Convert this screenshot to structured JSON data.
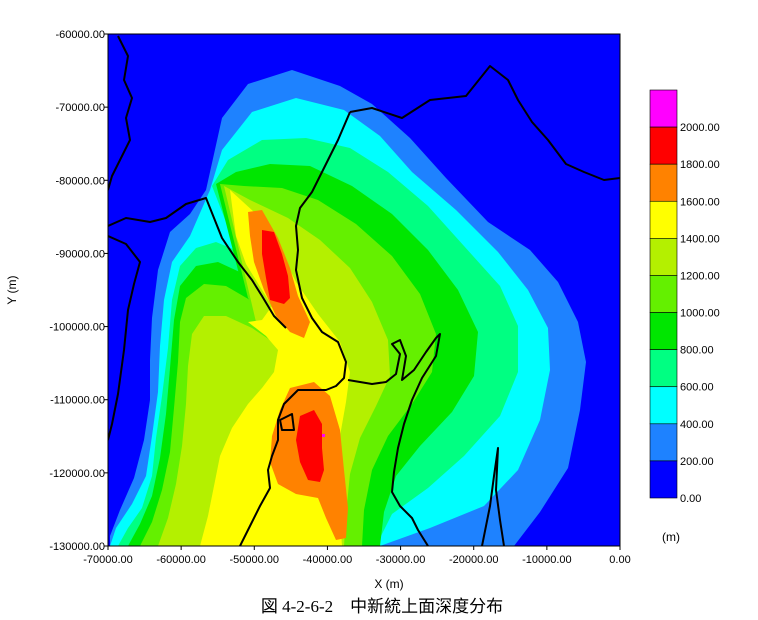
{
  "chart_data": {
    "type": "heatmap",
    "title": "",
    "caption": "図 4-2-6-2　中新統上面深度分布",
    "xlabel": "X (m)",
    "ylabel": "Y (m)",
    "xlim": [
      -70000,
      0
    ],
    "ylim": [
      -130000,
      -60000
    ],
    "x_ticks": [
      "-70000.00",
      "-60000.00",
      "-50000.00",
      "-40000.00",
      "-30000.00",
      "-20000.00",
      "-10000.00",
      "0.00"
    ],
    "y_ticks": [
      "-60000.00",
      "-70000.00",
      "-80000.00",
      "-90000.00",
      "-100000.00",
      "-110000.00",
      "-120000.00",
      "-130000.00"
    ],
    "legend_placement": "right",
    "legend_unit": "(m)",
    "legend_labels": [
      "2000.00",
      "1800.00",
      "1600.00",
      "1400.00",
      "1200.00",
      "1000.00",
      "800.00",
      "600.00",
      "400.00",
      "200.00",
      "0.00"
    ],
    "levels": [
      {
        "min": 0,
        "max": 200,
        "color": "#0000ff"
      },
      {
        "min": 200,
        "max": 400,
        "color": "#1e82ff"
      },
      {
        "min": 400,
        "max": 600,
        "color": "#00ffff"
      },
      {
        "min": 600,
        "max": 800,
        "color": "#00ff82"
      },
      {
        "min": 800,
        "max": 1000,
        "color": "#00e600"
      },
      {
        "min": 1000,
        "max": 1200,
        "color": "#64f000"
      },
      {
        "min": 1200,
        "max": 1400,
        "color": "#b4f000"
      },
      {
        "min": 1400,
        "max": 1600,
        "color": "#ffff00"
      },
      {
        "min": 1600,
        "max": 1800,
        "color": "#ff8200"
      },
      {
        "min": 1800,
        "max": 2000,
        "color": "#ff0000"
      },
      {
        "min": 2000,
        "max": 2200,
        "color": "#ff00ff"
      }
    ]
  }
}
